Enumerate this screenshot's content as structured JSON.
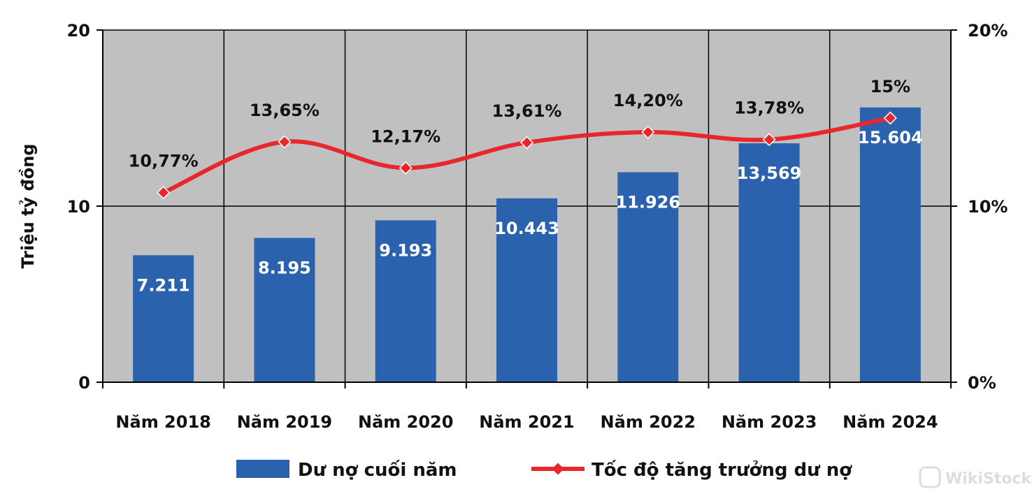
{
  "chart_data": {
    "type": "bar",
    "categories": [
      "Năm 2018",
      "Năm 2019",
      "Năm 2020",
      "Năm 2021",
      "Năm 2022",
      "Năm 2023",
      "Năm 2024"
    ],
    "series": [
      {
        "name": "Dư nợ cuối năm",
        "type": "bar",
        "axis": "left",
        "values": [
          7.211,
          8.195,
          9.193,
          10.443,
          11.926,
          13.569,
          15.604
        ],
        "labels": [
          "7.211",
          "8.195",
          "9.193",
          "10.443",
          "11.926",
          "13,569",
          "15.604"
        ],
        "color": "#2b62ad"
      },
      {
        "name": "Tốc độ tăng trưởng dư nợ",
        "type": "line",
        "axis": "right",
        "values": [
          10.77,
          13.65,
          12.17,
          13.61,
          14.2,
          13.78,
          15
        ],
        "labels": [
          "10,77%",
          "13,65%",
          "12,17%",
          "13,61%",
          "14,20%",
          "13,78%",
          "15%"
        ],
        "color": "#e8262b"
      }
    ],
    "ylabel": "Triệu tỷ đồng",
    "ylim": [
      0,
      20
    ],
    "y_ticks": [
      "0",
      "10",
      "20"
    ],
    "y2lim": [
      0,
      20
    ],
    "y2_ticks": [
      "0%",
      "10%",
      "20%"
    ],
    "plot_background": "#c0c0c0",
    "grid": true,
    "legend": "bottom"
  },
  "watermark": "WikiStock"
}
